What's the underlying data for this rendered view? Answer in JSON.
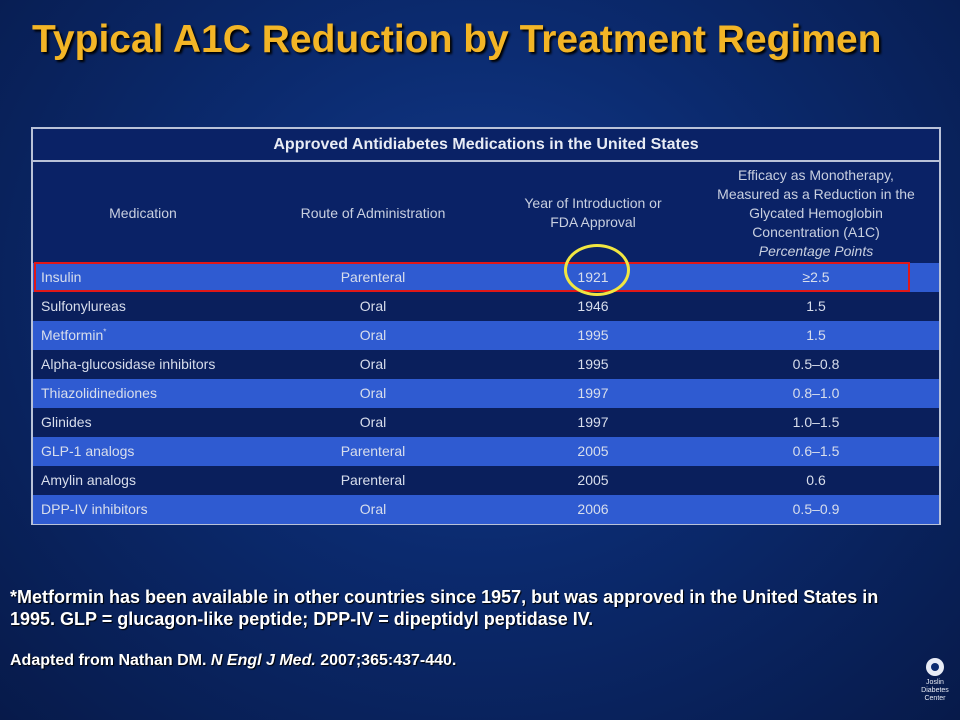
{
  "slide": {
    "title": "Typical A1C Reduction by Treatment Regimen"
  },
  "table": {
    "caption": "Approved Antidiabetes Medications in the United States",
    "headers": {
      "medication": "Medication",
      "route": "Route of Administration",
      "year": "Year of Introduction or FDA Approval",
      "efficacy_line1": "Efficacy as Monotherapy, Measured as a Reduction in the Glycated Hemoglobin Concentration (A1C)",
      "efficacy_line2": "Percentage Points"
    },
    "rows": [
      {
        "medication": "Insulin",
        "mark": "",
        "route": "Parenteral",
        "year": "1921",
        "efficacy": "≥2.5"
      },
      {
        "medication": "Sulfonylureas",
        "mark": "",
        "route": "Oral",
        "year": "1946",
        "efficacy": "1.5"
      },
      {
        "medication": "Metformin",
        "mark": "*",
        "route": "Oral",
        "year": "1995",
        "efficacy": "1.5"
      },
      {
        "medication": "Alpha-glucosidase inhibitors",
        "mark": "",
        "route": "Oral",
        "year": "1995",
        "efficacy": "0.5–0.8"
      },
      {
        "medication": "Thiazolidinediones",
        "mark": "",
        "route": "Oral",
        "year": "1997",
        "efficacy": "0.8–1.0"
      },
      {
        "medication": "Glinides",
        "mark": "",
        "route": "Oral",
        "year": "1997",
        "efficacy": "1.0–1.5"
      },
      {
        "medication": "GLP-1 analogs",
        "mark": "",
        "route": "Parenteral",
        "year": "2005",
        "efficacy": "0.6–1.5"
      },
      {
        "medication": "Amylin analogs",
        "mark": "",
        "route": "Parenteral",
        "year": "2005",
        "efficacy": "0.6"
      },
      {
        "medication": "DPP-IV inhibitors",
        "mark": "",
        "route": "Oral",
        "year": "2006",
        "efficacy": "0.5–0.9"
      }
    ]
  },
  "footnote": "*Metformin has been available in other countries since 1957, but was approved in the United States in 1995.  GLP = glucagon-like peptide; DPP-IV = dipeptidyl peptidase IV.",
  "source": {
    "prefix": "Adapted from Nathan DM. ",
    "journal": "N Engl J Med.",
    "citation": " 2007;365:437-440."
  },
  "logo": {
    "text_line1": "Joslin",
    "text_line2": "Diabetes",
    "text_line3": "Center"
  },
  "colors": {
    "title": "#f3b526",
    "row_light": "#2f5bd1",
    "row_dark": "#0a1f5c",
    "highlight_rect": "#e01818",
    "highlight_circle": "#f1e641"
  }
}
